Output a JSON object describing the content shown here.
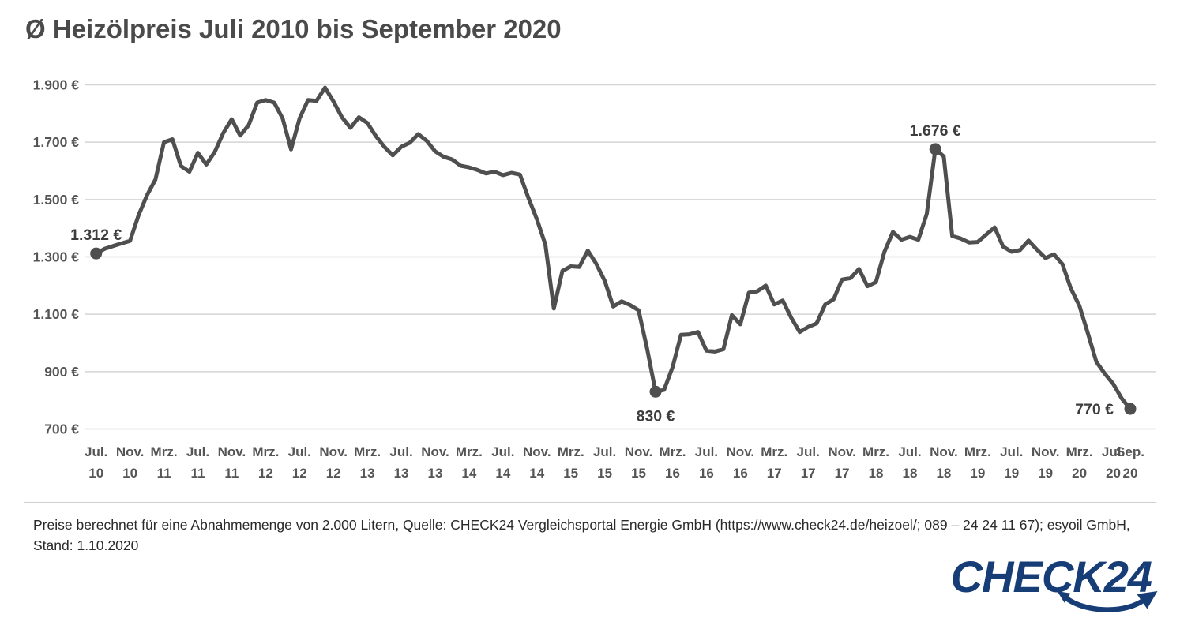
{
  "page": {
    "title": "Ø Heizölpreis Juli 2010 bis September 2020"
  },
  "footer": {
    "line1": "Preise berechnet für eine Abnahmemenge von 2.000 Litern, Quelle: CHECK24 Vergleichsportal Energie GmbH (https://www.check24.de/heizoel/; 089 – 24 24 11 67); esyoil GmbH,",
    "line2": "Stand: 1.10.2020"
  },
  "logo": {
    "text": "CHECK24",
    "color": "#173d77",
    "swoosh_icon": "curved-arrow-smile"
  },
  "chart_data": {
    "type": "line",
    "title": "Ø Heizölpreis Juli 2010 bis September 2020",
    "unit": "€ je 2.000 Liter",
    "interval": "monthly",
    "x_start": "Jul 2010",
    "x_end": "Sep 2020",
    "grid": "horizontal",
    "legend": "none",
    "ylim": [
      700,
      1900
    ],
    "line_color": "#4f4f4f",
    "grid_color": "#d4d4d4",
    "label_color": "#555555",
    "annotation_color": "#3d3d3d",
    "yticks": [
      {
        "value": 1900,
        "label": "1.900 €"
      },
      {
        "value": 1700,
        "label": "1.700 €"
      },
      {
        "value": 1500,
        "label": "1.500 €"
      },
      {
        "value": 1300,
        "label": "1.300 €"
      },
      {
        "value": 1100,
        "label": "1.100 €"
      },
      {
        "value": 900,
        "label": "900 €"
      },
      {
        "value": 700,
        "label": "700 €"
      }
    ],
    "xticks": [
      {
        "index": 0,
        "month": "Jul.",
        "year": "10"
      },
      {
        "index": 4,
        "month": "Nov.",
        "year": "10"
      },
      {
        "index": 8,
        "month": "Mrz.",
        "year": "11"
      },
      {
        "index": 12,
        "month": "Jul.",
        "year": "11"
      },
      {
        "index": 16,
        "month": "Nov.",
        "year": "11"
      },
      {
        "index": 20,
        "month": "Mrz.",
        "year": "12"
      },
      {
        "index": 24,
        "month": "Jul.",
        "year": "12"
      },
      {
        "index": 28,
        "month": "Nov.",
        "year": "12"
      },
      {
        "index": 32,
        "month": "Mrz.",
        "year": "13"
      },
      {
        "index": 36,
        "month": "Jul.",
        "year": "13"
      },
      {
        "index": 40,
        "month": "Nov.",
        "year": "13"
      },
      {
        "index": 44,
        "month": "Mrz.",
        "year": "14"
      },
      {
        "index": 48,
        "month": "Jul.",
        "year": "14"
      },
      {
        "index": 52,
        "month": "Nov.",
        "year": "14"
      },
      {
        "index": 56,
        "month": "Mrz.",
        "year": "15"
      },
      {
        "index": 60,
        "month": "Jul.",
        "year": "15"
      },
      {
        "index": 64,
        "month": "Nov.",
        "year": "15"
      },
      {
        "index": 68,
        "month": "Mrz.",
        "year": "16"
      },
      {
        "index": 72,
        "month": "Jul.",
        "year": "16"
      },
      {
        "index": 76,
        "month": "Nov.",
        "year": "16"
      },
      {
        "index": 80,
        "month": "Mrz.",
        "year": "17"
      },
      {
        "index": 84,
        "month": "Jul.",
        "year": "17"
      },
      {
        "index": 88,
        "month": "Nov.",
        "year": "17"
      },
      {
        "index": 92,
        "month": "Mrz.",
        "year": "18"
      },
      {
        "index": 96,
        "month": "Jul.",
        "year": "18"
      },
      {
        "index": 100,
        "month": "Nov.",
        "year": "18"
      },
      {
        "index": 104,
        "month": "Mrz.",
        "year": "19"
      },
      {
        "index": 108,
        "month": "Jul.",
        "year": "19"
      },
      {
        "index": 112,
        "month": "Nov.",
        "year": "19"
      },
      {
        "index": 116,
        "month": "Mrz.",
        "year": "20"
      },
      {
        "index": 120,
        "month": "Jul.",
        "year": "20"
      },
      {
        "index": 122,
        "month": "Sep.",
        "year": "20"
      }
    ],
    "series": [
      {
        "name": "Heizölpreis für 2.000 Liter",
        "color": "#4f4f4f",
        "values": [
          1312,
          1328,
          1338,
          1347,
          1356,
          1445,
          1515,
          1570,
          1700,
          1710,
          1617,
          1597,
          1663,
          1622,
          1666,
          1732,
          1780,
          1723,
          1760,
          1838,
          1847,
          1838,
          1783,
          1675,
          1783,
          1847,
          1844,
          1890,
          1842,
          1787,
          1750,
          1787,
          1767,
          1721,
          1684,
          1654,
          1684,
          1698,
          1728,
          1705,
          1668,
          1649,
          1640,
          1618,
          1612,
          1603,
          1591,
          1597,
          1585,
          1593,
          1587,
          1506,
          1431,
          1343,
          1120,
          1251,
          1267,
          1265,
          1322,
          1276,
          1217,
          1127,
          1145,
          1132,
          1114,
          980,
          830,
          836,
          915,
          1028,
          1030,
          1038,
          973,
          970,
          978,
          1097,
          1065,
          1175,
          1180,
          1200,
          1134,
          1148,
          1088,
          1038,
          1056,
          1068,
          1134,
          1152,
          1221,
          1226,
          1258,
          1198,
          1212,
          1318,
          1387,
          1360,
          1370,
          1360,
          1450,
          1676,
          1650,
          1373,
          1364,
          1350,
          1352,
          1378,
          1403,
          1336,
          1318,
          1324,
          1357,
          1325,
          1296,
          1309,
          1275,
          1189,
          1130,
          1034,
          934,
          893,
          857,
          806,
          770
        ]
      }
    ],
    "annotations": [
      {
        "index": 0,
        "value": 1312,
        "label": "1.312 €",
        "position": "above"
      },
      {
        "index": 66,
        "value": 830,
        "label": "830 €",
        "position": "below"
      },
      {
        "index": 99,
        "value": 1676,
        "label": "1.676 €",
        "position": "above"
      },
      {
        "index": 122,
        "value": 770,
        "label": "770 €",
        "position": "left"
      }
    ]
  }
}
